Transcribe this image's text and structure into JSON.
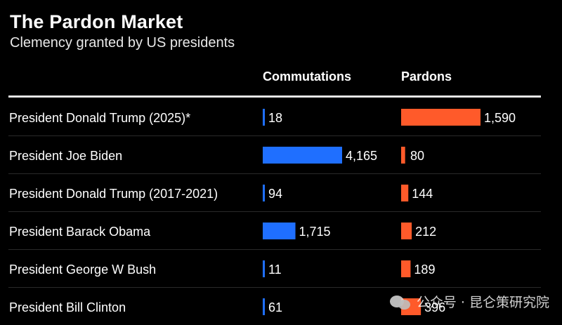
{
  "header": {
    "title": "The Pardon Market",
    "subtitle": "Clemency granted by US presidents"
  },
  "columns": {
    "commutations": "Commutations",
    "pardons": "Pardons"
  },
  "colors": {
    "commutation": "#1f6fff",
    "pardon": "#ff5a2a",
    "background": "#000000",
    "divider": "#2a2a2a"
  },
  "chart_data": {
    "type": "bar",
    "title": "The Pardon Market",
    "subtitle": "Clemency granted by US presidents",
    "categories": [
      "President Donald Trump (2025)*",
      "President Joe Biden",
      "President Donald Trump (2017-2021)",
      "President Barack Obama",
      "President George W Bush",
      "President Bill Clinton"
    ],
    "series": [
      {
        "name": "Commutations",
        "values": [
          18,
          4165,
          94,
          1715,
          11,
          61
        ],
        "labels": [
          "18",
          "4,165",
          "94",
          "1,715",
          "11",
          "61"
        ]
      },
      {
        "name": "Pardons",
        "values": [
          1590,
          80,
          144,
          212,
          189,
          396
        ],
        "labels": [
          "1,590",
          "80",
          "144",
          "212",
          "189",
          "396"
        ]
      }
    ],
    "orientation": "horizontal",
    "grid": false,
    "legend": "column headers"
  },
  "watermark": {
    "text": "公众号 · 昆仑策研究院",
    "icon": "wechat-icon"
  }
}
